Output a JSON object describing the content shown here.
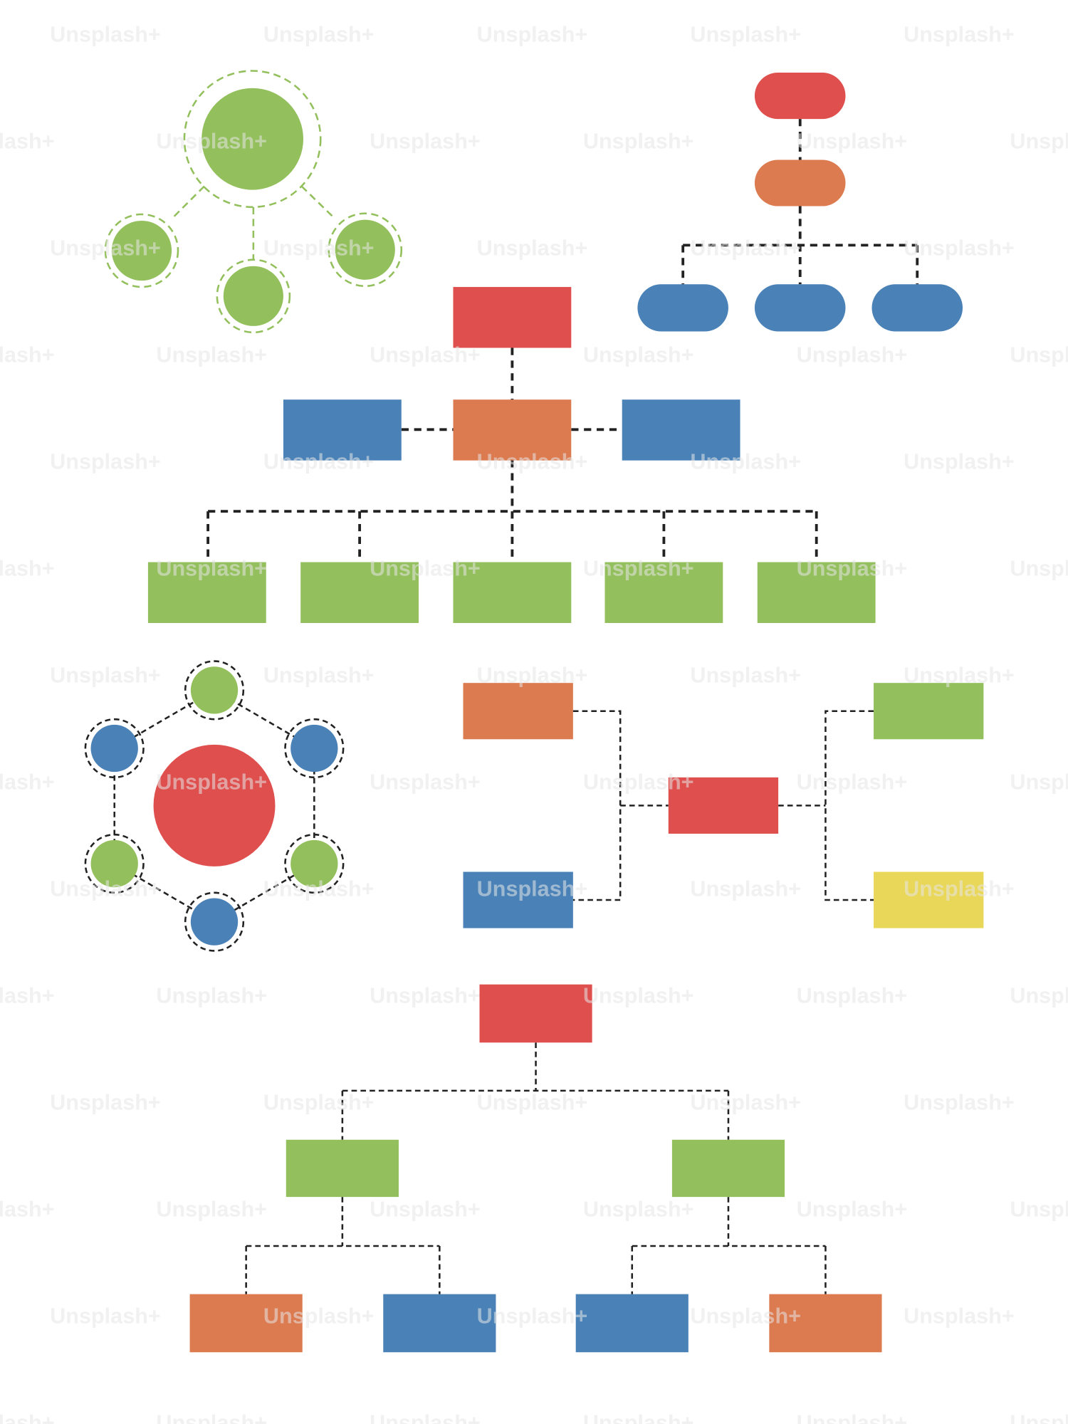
{
  "watermark": "Unsplash+",
  "colors": {
    "red": "#DE4F4E",
    "orange": "#DC7B50",
    "blue": "#4A82B8",
    "green": "#93C05C",
    "yellow": "#E9D75A",
    "connector": "#222222"
  }
}
